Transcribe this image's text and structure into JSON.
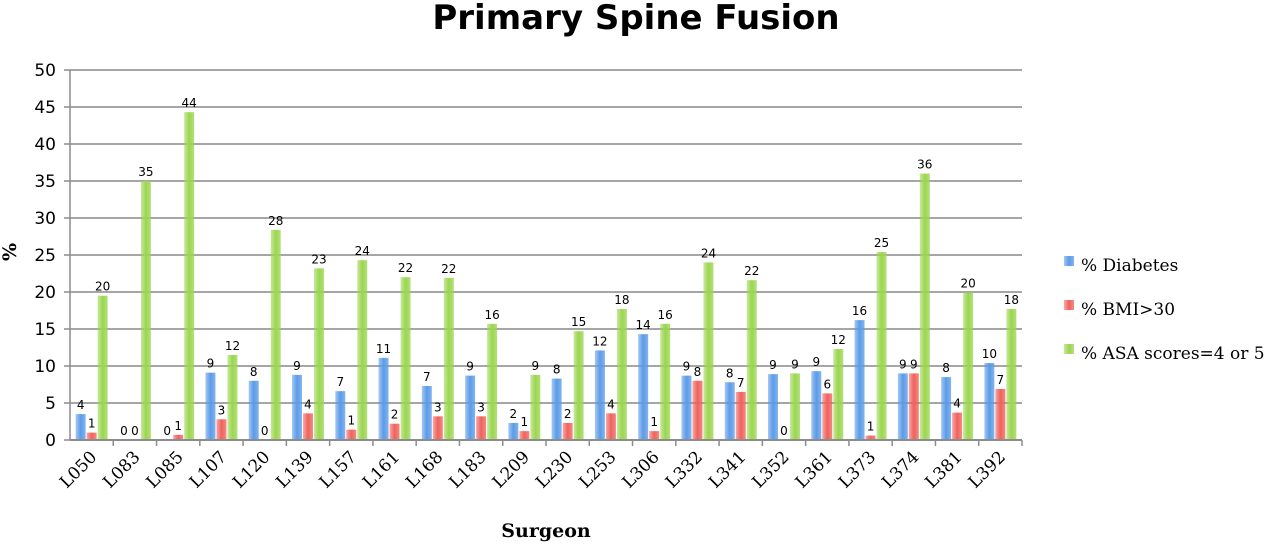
{
  "chart_data": {
    "type": "bar",
    "title": "Primary Spine Fusion",
    "xlabel": "Surgeon",
    "ylabel": "%",
    "ylim": [
      0,
      50
    ],
    "yticks": [
      0,
      5,
      10,
      15,
      20,
      25,
      30,
      35,
      40,
      45,
      50
    ],
    "grid": true,
    "legend_position": "right",
    "categories": [
      "L050",
      "L083",
      "L085",
      "L107",
      "L120",
      "L139",
      "L157",
      "L161",
      "L168",
      "L183",
      "L209",
      "L230",
      "L253",
      "L306",
      "L332",
      "L341",
      "L352",
      "L361",
      "L373",
      "L374",
      "L381",
      "L392"
    ],
    "series": [
      {
        "name": "% Diabetes",
        "color": "#5b9be8",
        "values": [
          3.5,
          0,
          0,
          9.1,
          8.0,
          8.8,
          6.6,
          11.1,
          7.3,
          8.7,
          2.3,
          8.3,
          12.1,
          14.3,
          8.7,
          7.8,
          8.9,
          9.3,
          16.2,
          9.0,
          8.5,
          10.4
        ],
        "labels": [
          "4",
          "0",
          "0",
          "9",
          "8",
          "9",
          "7",
          "11",
          "7",
          "9",
          "2",
          "8",
          "12",
          "14",
          "9",
          "8",
          "9",
          "9",
          "16",
          "9",
          "8",
          "10"
        ]
      },
      {
        "name": "% BMI>30",
        "color": "#f0625c",
        "values": [
          1.0,
          0,
          0.7,
          2.8,
          0,
          3.6,
          1.4,
          2.2,
          3.2,
          3.2,
          1.2,
          2.3,
          3.6,
          1.2,
          8.0,
          6.5,
          0,
          6.3,
          0.6,
          9.0,
          3.7,
          6.9
        ],
        "labels": [
          "1",
          "0",
          "1",
          "3",
          "0",
          "4",
          "1",
          "2",
          "3",
          "3",
          "1",
          "2",
          "4",
          "1",
          "8",
          "7",
          "0",
          "6",
          "1",
          "9",
          "4",
          "7"
        ]
      },
      {
        "name": "% ASA scores=4 or 5",
        "color": "#9bd64f",
        "values": [
          19.5,
          35.0,
          44.3,
          11.5,
          28.4,
          23.2,
          24.3,
          22.0,
          21.9,
          15.7,
          8.8,
          14.7,
          17.7,
          15.7,
          24.0,
          21.6,
          9.0,
          12.3,
          25.4,
          36.0,
          19.9,
          17.7
        ],
        "labels": [
          "20",
          "35",
          "44",
          "12",
          "28",
          "23",
          "24",
          "22",
          "22",
          "16",
          "9",
          "15",
          "18",
          "16",
          "24",
          "22",
          "9",
          "12",
          "25",
          "36",
          "20",
          "18"
        ]
      }
    ]
  }
}
